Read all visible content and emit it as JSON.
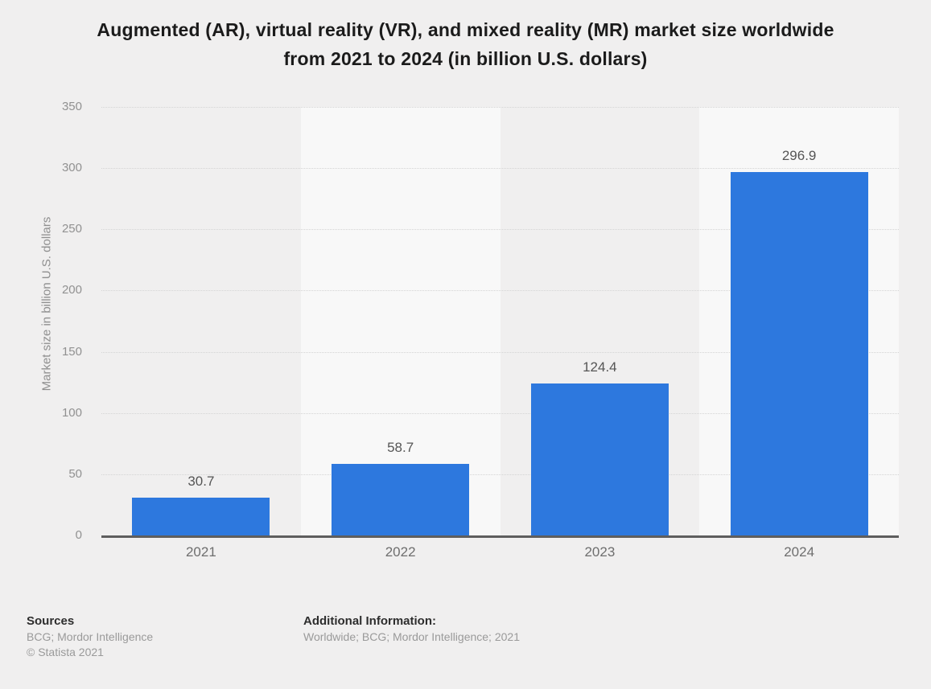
{
  "title": {
    "lines": [
      "Augmented (AR), virtual reality (VR), and mixed reality (MR) market size worldwide",
      "from 2021 to 2024 (in billion U.S. dollars)"
    ]
  },
  "chart_data": {
    "type": "bar",
    "title": "Augmented (AR), virtual reality (VR), and mixed reality (MR) market size worldwide from 2021 to 2024 (in billion U.S. dollars)",
    "categories": [
      "2021",
      "2022",
      "2023",
      "2024"
    ],
    "values": [
      30.7,
      58.7,
      124.4,
      296.9
    ],
    "value_labels": [
      "30.7",
      "58.7",
      "124.4",
      "296.9"
    ],
    "xlabel": "",
    "ylabel": "Market size in billion U.S. dollars",
    "ylim": [
      0,
      350
    ],
    "ytick_interval": 50,
    "yticks": [
      0,
      50,
      100,
      150,
      200,
      250,
      300,
      350
    ],
    "grid": "horizontal-dotted",
    "legend": "none",
    "bar_color": "#2d78de"
  },
  "colors": {
    "bar": "#2d78de",
    "page_background": "#f0efef",
    "band_light": "#f8f8f8",
    "band_dark": "#f0efef",
    "gridline": "#d4d4d4",
    "axis_line": "#5e5e5e"
  },
  "footer": {
    "sources_heading": "Sources",
    "sources_line1": "BCG; Mordor Intelligence",
    "sources_line2": "© Statista 2021",
    "additional_heading": "Additional Information:",
    "additional_line1": "Worldwide; BCG; Mordor Intelligence; 2021"
  }
}
